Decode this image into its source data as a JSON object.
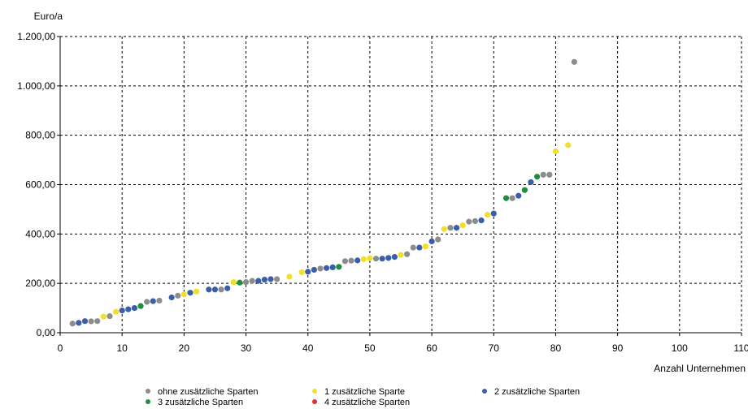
{
  "chart_data": {
    "type": "scatter",
    "ylabel": "Euro/a",
    "xlabel": "Anzahl Unternehmen",
    "xlim": [
      0,
      110
    ],
    "ylim": [
      0,
      1200
    ],
    "x_ticks": [
      0,
      10,
      20,
      30,
      40,
      50,
      60,
      70,
      80,
      90,
      100,
      110
    ],
    "x_tick_labels": [
      "0",
      "10",
      "20",
      "30",
      "40",
      "50",
      "60",
      "70",
      "80",
      "90",
      "100",
      "110"
    ],
    "y_ticks": [
      0,
      200,
      400,
      600,
      800,
      1000,
      1200
    ],
    "y_tick_labels": [
      "0,00",
      "200,00",
      "400,00",
      "600,00",
      "800,00",
      "1.000,00",
      "1.200,00"
    ],
    "grid": true,
    "legend_position": "bottom",
    "series": [
      {
        "name": "ohne zusätzliche Sparten",
        "color": "#8c8c8c",
        "points": [
          [
            2,
            37
          ],
          [
            5,
            46
          ],
          [
            6,
            47
          ],
          [
            8,
            67
          ],
          [
            14,
            125
          ],
          [
            16,
            130
          ],
          [
            19,
            150
          ],
          [
            26,
            175
          ],
          [
            30,
            205
          ],
          [
            31,
            210
          ],
          [
            35,
            217
          ],
          [
            42,
            260
          ],
          [
            46,
            290
          ],
          [
            47,
            292
          ],
          [
            51,
            300
          ],
          [
            56,
            318
          ],
          [
            57,
            345
          ],
          [
            61,
            378
          ],
          [
            63,
            425
          ],
          [
            66,
            450
          ],
          [
            67,
            452
          ],
          [
            73,
            545
          ],
          [
            78,
            640
          ],
          [
            79,
            640
          ],
          [
            83,
            1097
          ]
        ]
      },
      {
        "name": "1 zusätzliche Sparte",
        "color": "#f2df2c",
        "points": [
          [
            7,
            65
          ],
          [
            9,
            85
          ],
          [
            20,
            155
          ],
          [
            22,
            167
          ],
          [
            28,
            205
          ],
          [
            37,
            227
          ],
          [
            39,
            245
          ],
          [
            49,
            298
          ],
          [
            50,
            302
          ],
          [
            55,
            315
          ],
          [
            59,
            350
          ],
          [
            62,
            420
          ],
          [
            65,
            435
          ],
          [
            69,
            478
          ],
          [
            80,
            735
          ],
          [
            82,
            760
          ]
        ]
      },
      {
        "name": "2 zusätzliche Sparten",
        "color": "#3b5ea8",
        "points": [
          [
            3,
            40
          ],
          [
            4,
            47
          ],
          [
            10,
            90
          ],
          [
            11,
            95
          ],
          [
            12,
            100
          ],
          [
            15,
            128
          ],
          [
            18,
            143
          ],
          [
            21,
            162
          ],
          [
            24,
            175
          ],
          [
            25,
            175
          ],
          [
            27,
            180
          ],
          [
            32,
            210
          ],
          [
            33,
            215
          ],
          [
            34,
            217
          ],
          [
            40,
            247
          ],
          [
            41,
            255
          ],
          [
            43,
            262
          ],
          [
            44,
            265
          ],
          [
            48,
            293
          ],
          [
            52,
            300
          ],
          [
            53,
            303
          ],
          [
            54,
            307
          ],
          [
            58,
            345
          ],
          [
            60,
            370
          ],
          [
            64,
            425
          ],
          [
            68,
            455
          ],
          [
            70,
            483
          ],
          [
            74,
            555
          ],
          [
            76,
            610
          ]
        ]
      },
      {
        "name": "3 zusätzliche Sparten",
        "color": "#1f8f3e",
        "points": [
          [
            13,
            108
          ],
          [
            29,
            203
          ],
          [
            45,
            267
          ],
          [
            72,
            545
          ],
          [
            75,
            578
          ],
          [
            77,
            632
          ]
        ]
      },
      {
        "name": "4 zusätzliche Sparten",
        "color": "#e03030",
        "points": []
      }
    ]
  }
}
